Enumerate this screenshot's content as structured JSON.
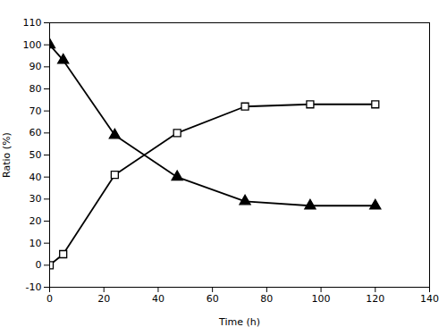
{
  "chart_data": {
    "type": "line",
    "x": [
      0,
      5,
      24,
      47,
      72,
      96,
      120
    ],
    "xlabel": "Time (h)",
    "ylabel": "Ratio (%)",
    "xlim": [
      0,
      140
    ],
    "ylim": [
      -10,
      110
    ],
    "xticks": [
      0,
      20,
      40,
      60,
      80,
      100,
      120,
      140
    ],
    "yticks": [
      -10,
      0,
      10,
      20,
      30,
      40,
      50,
      60,
      70,
      80,
      90,
      100,
      110
    ],
    "grid": false,
    "series": [
      {
        "values": [
          100,
          93,
          59,
          40,
          29,
          27,
          27
        ],
        "yerr": [
          0.5,
          1.5,
          1.5,
          1.0,
          1.5,
          0.5,
          0.5
        ],
        "color": "#000000",
        "marker": "triangle",
        "line_style": "solid"
      },
      {
        "values": [
          0,
          5,
          41,
          60,
          72,
          73,
          73
        ],
        "yerr": [
          0.5,
          0.5,
          1.5,
          1.0,
          1.5,
          0.5,
          0.5
        ],
        "color": "#000000",
        "marker": "square_open",
        "line_style": "solid"
      }
    ]
  }
}
